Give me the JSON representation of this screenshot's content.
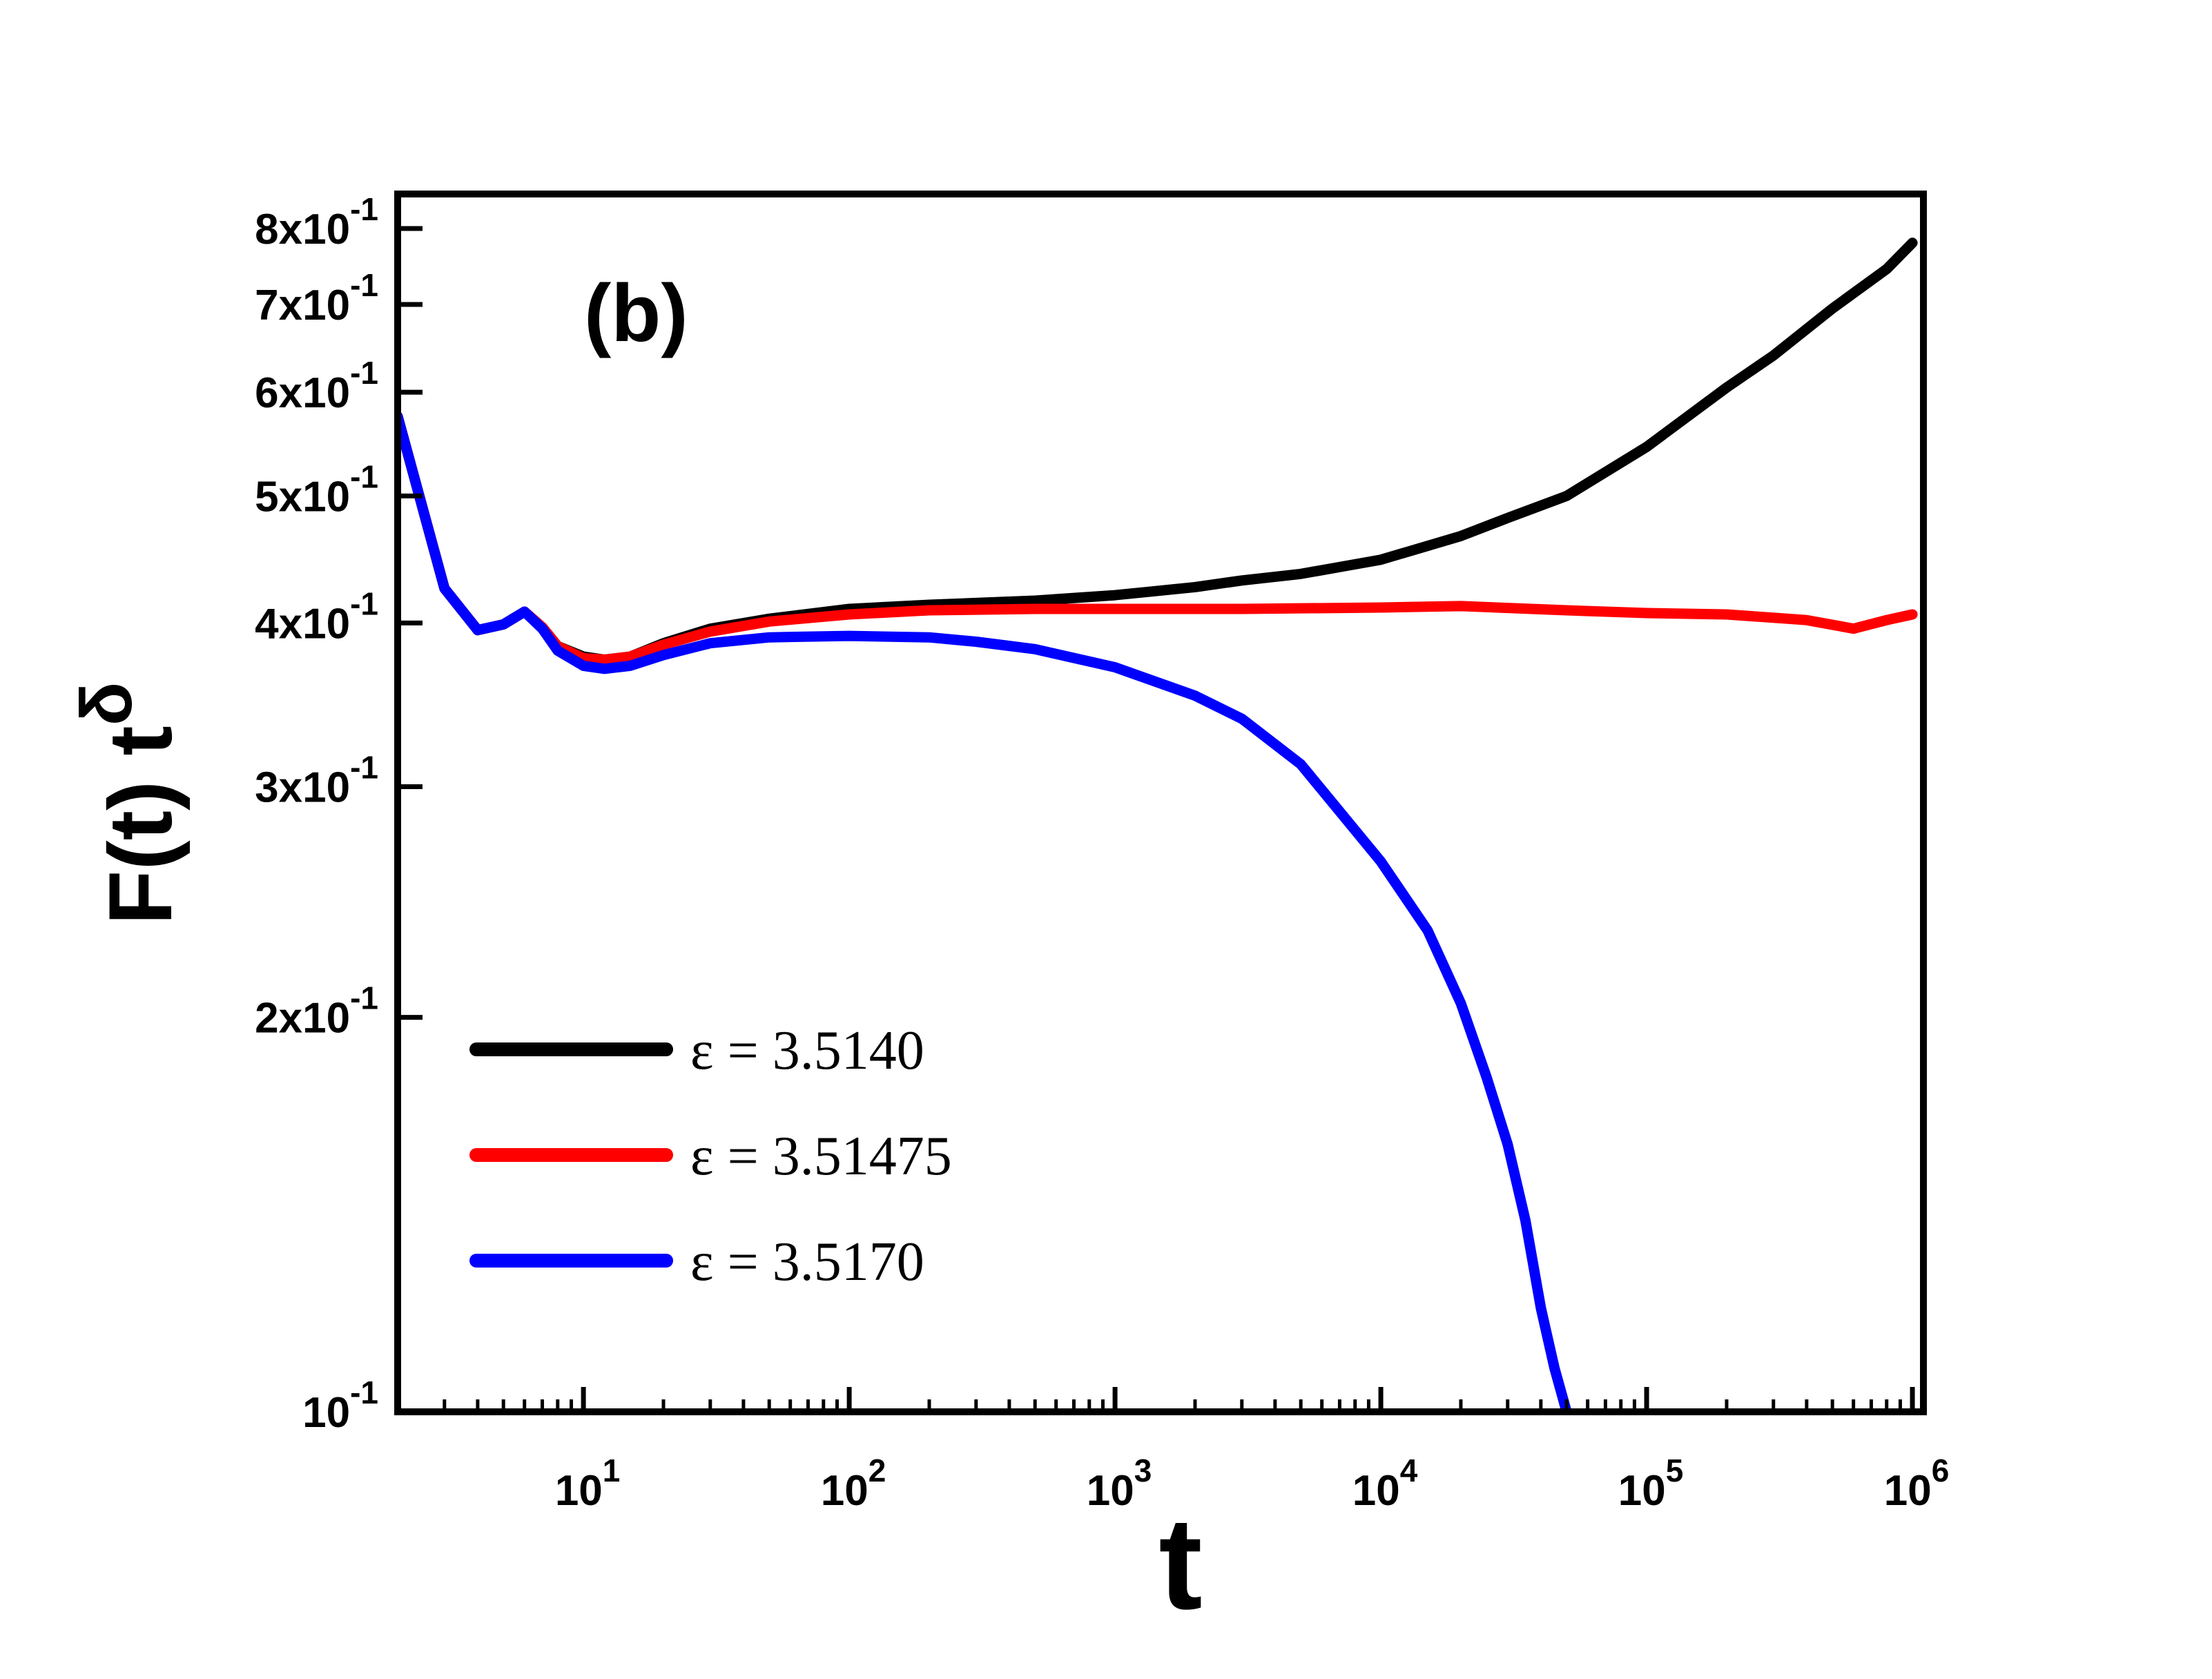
{
  "chart_data": {
    "type": "line",
    "panel_label": "(b)",
    "xlabel": "t",
    "ylabel": "F(t) t",
    "ylabel_superscript": "δ",
    "xscale": "log",
    "yscale": "log",
    "xlim": [
      2,
      1100000
    ],
    "ylim": [
      0.1,
      0.85
    ],
    "x_ticks": [
      {
        "value": 10,
        "base": "10",
        "exp": "1"
      },
      {
        "value": 100,
        "base": "10",
        "exp": "2"
      },
      {
        "value": 1000,
        "base": "10",
        "exp": "3"
      },
      {
        "value": 10000,
        "base": "10",
        "exp": "4"
      },
      {
        "value": 100000,
        "base": "10",
        "exp": "5"
      },
      {
        "value": 1000000,
        "base": "10",
        "exp": "6"
      }
    ],
    "y_ticks": [
      {
        "value": 0.1,
        "base": "10",
        "exp": "-1"
      },
      {
        "value": 0.2,
        "base": "2x10",
        "exp": "-1"
      },
      {
        "value": 0.3,
        "base": "3x10",
        "exp": "-1"
      },
      {
        "value": 0.4,
        "base": "4x10",
        "exp": "-1"
      },
      {
        "value": 0.5,
        "base": "5x10",
        "exp": "-1"
      },
      {
        "value": 0.6,
        "base": "6x10",
        "exp": "-1"
      },
      {
        "value": 0.7,
        "base": "7x10",
        "exp": "-1"
      },
      {
        "value": 0.8,
        "base": "8x10",
        "exp": "-1"
      }
    ],
    "legend_position": "bottom-left",
    "series": [
      {
        "name": "ε = 3.5140",
        "color": "#000000",
        "points": [
          [
            2,
            0.575
          ],
          [
            3,
            0.425
          ],
          [
            4,
            0.395
          ],
          [
            5,
            0.399
          ],
          [
            6,
            0.408
          ],
          [
            7,
            0.397
          ],
          [
            8,
            0.384
          ],
          [
            10,
            0.377
          ],
          [
            12,
            0.375
          ],
          [
            15,
            0.377
          ],
          [
            20,
            0.386
          ],
          [
            30,
            0.396
          ],
          [
            50,
            0.403
          ],
          [
            100,
            0.41
          ],
          [
            200,
            0.413
          ],
          [
            500,
            0.416
          ],
          [
            1000,
            0.42
          ],
          [
            2000,
            0.426
          ],
          [
            3000,
            0.431
          ],
          [
            5000,
            0.436
          ],
          [
            10000,
            0.447
          ],
          [
            20000,
            0.466
          ],
          [
            30000,
            0.481
          ],
          [
            50000,
            0.5
          ],
          [
            100000,
            0.545
          ],
          [
            200000,
            0.605
          ],
          [
            300000,
            0.64
          ],
          [
            500000,
            0.695
          ],
          [
            800000,
            0.745
          ],
          [
            1000000,
            0.78
          ]
        ]
      },
      {
        "name": "ε = 3.51475",
        "color": "#ff0000",
        "points": [
          [
            2,
            0.575
          ],
          [
            3,
            0.425
          ],
          [
            4,
            0.395
          ],
          [
            5,
            0.399
          ],
          [
            6,
            0.408
          ],
          [
            7,
            0.397
          ],
          [
            8,
            0.384
          ],
          [
            10,
            0.376
          ],
          [
            12,
            0.375
          ],
          [
            15,
            0.377
          ],
          [
            20,
            0.385
          ],
          [
            30,
            0.394
          ],
          [
            50,
            0.401
          ],
          [
            100,
            0.406
          ],
          [
            200,
            0.409
          ],
          [
            500,
            0.41
          ],
          [
            1000,
            0.41
          ],
          [
            3000,
            0.41
          ],
          [
            10000,
            0.411
          ],
          [
            20000,
            0.412
          ],
          [
            50000,
            0.409
          ],
          [
            100000,
            0.407
          ],
          [
            200000,
            0.406
          ],
          [
            400000,
            0.402
          ],
          [
            600000,
            0.396
          ],
          [
            800000,
            0.402
          ],
          [
            1000000,
            0.406
          ]
        ]
      },
      {
        "name": "ε = 3.5170",
        "color": "#0000ff",
        "points": [
          [
            2,
            0.575
          ],
          [
            3,
            0.425
          ],
          [
            4,
            0.395
          ],
          [
            5,
            0.399
          ],
          [
            6,
            0.408
          ],
          [
            7,
            0.396
          ],
          [
            8,
            0.381
          ],
          [
            10,
            0.371
          ],
          [
            12,
            0.369
          ],
          [
            15,
            0.371
          ],
          [
            20,
            0.378
          ],
          [
            30,
            0.386
          ],
          [
            50,
            0.39
          ],
          [
            100,
            0.391
          ],
          [
            200,
            0.39
          ],
          [
            300,
            0.387
          ],
          [
            500,
            0.382
          ],
          [
            1000,
            0.37
          ],
          [
            2000,
            0.352
          ],
          [
            3000,
            0.338
          ],
          [
            5000,
            0.312
          ],
          [
            10000,
            0.263
          ],
          [
            15000,
            0.233
          ],
          [
            20000,
            0.205
          ],
          [
            25000,
            0.18
          ],
          [
            30000,
            0.16
          ],
          [
            35000,
            0.14
          ],
          [
            40000,
            0.12
          ],
          [
            45000,
            0.108
          ],
          [
            50000,
            0.1
          ]
        ]
      }
    ]
  }
}
